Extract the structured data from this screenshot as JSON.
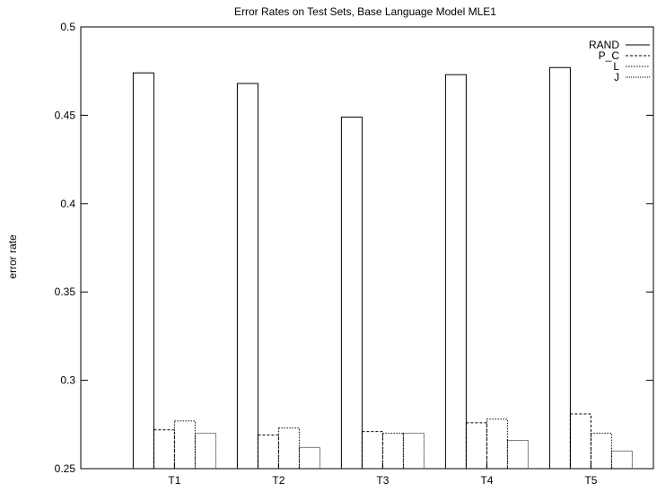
{
  "chart_data": {
    "type": "bar",
    "title": "Error Rates on Test Sets, Base Language Model MLE1",
    "xlabel": "",
    "ylabel": "error rate",
    "categories": [
      "T1",
      "T2",
      "T3",
      "T4",
      "T5"
    ],
    "ylim": [
      0.25,
      0.5
    ],
    "yticks": [
      0.25,
      0.3,
      0.35,
      0.4,
      0.45,
      0.5
    ],
    "ytick_labels": [
      "0.25",
      "0.3",
      "0.35",
      "0.4",
      "0.45",
      "0.5"
    ],
    "legend_position": "top-right",
    "grid": false,
    "series": [
      {
        "name": "RAND",
        "style": "solid",
        "values": [
          0.474,
          0.468,
          0.449,
          0.473,
          0.477
        ]
      },
      {
        "name": "P_C",
        "style": "dashed",
        "values": [
          0.272,
          0.269,
          0.271,
          0.276,
          0.281
        ]
      },
      {
        "name": "L",
        "style": "dotted",
        "values": [
          0.277,
          0.273,
          0.27,
          0.278,
          0.27
        ]
      },
      {
        "name": "J",
        "style": "fine-dotted",
        "values": [
          0.27,
          0.262,
          0.27,
          0.266,
          0.26
        ]
      }
    ]
  }
}
